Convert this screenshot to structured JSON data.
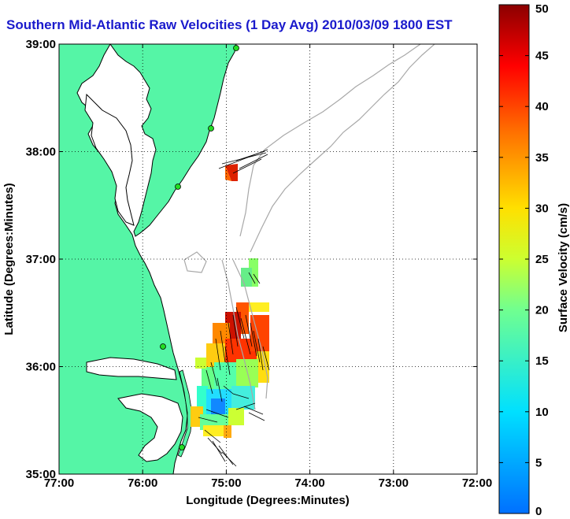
{
  "title": "Southern Mid-Atlantic Raw Velocities (1 Day Avg) 2010/03/09 1800 EST",
  "map": {
    "xlabel": "Longitude (Degrees:Minutes)",
    "ylabel": "Latitude (Degrees:Minutes)",
    "lon_ticks": [
      "77:00",
      "76:00",
      "75:00",
      "74:00",
      "73:00",
      "72:00"
    ],
    "lat_ticks": [
      "39:00",
      "38:00",
      "37:00",
      "36:00",
      "35:00"
    ],
    "lon_range": [
      -77,
      -72
    ],
    "lat_range": [
      35,
      39
    ],
    "grid": true,
    "land_color": "#55f5a6",
    "coast_color": "#000000",
    "bathymetry_color": "#a8a8a8",
    "station_color": "#22dd22"
  },
  "colorbar": {
    "label": "Surface Velocity (cm/s)",
    "ticks": [
      "0",
      "5",
      "10",
      "15",
      "20",
      "25",
      "30",
      "35",
      "40",
      "45",
      "50"
    ],
    "range": [
      0,
      50
    ],
    "colormap": "jet"
  }
}
